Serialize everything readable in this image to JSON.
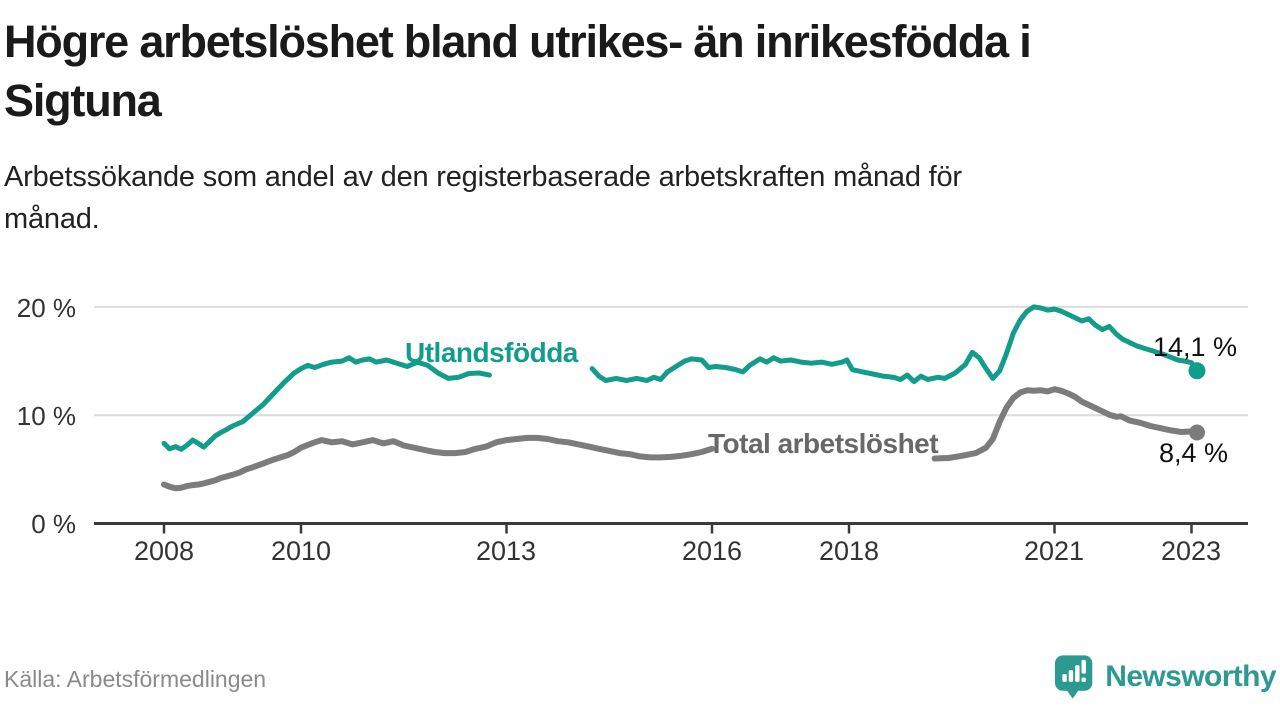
{
  "header": {
    "title": "Högre arbetslöshet bland utrikes- än inrikesfödda i Sigtuna",
    "title_lines": [
      "Högre arbetslöshet bland utrikes- än inrikesfödda i",
      "Sigtuna"
    ],
    "subtitle": "Arbetssökande som andel av den registerbaserade arbetskraften månad för månad.",
    "subtitle_lines": [
      "Arbetssökande som andel av den registerbaserade arbetskraften månad för",
      "månad."
    ]
  },
  "chart_data": {
    "type": "line",
    "title": "Högre arbetslöshet bland utrikes- än inrikesfödda i Sigtuna",
    "xlabel": "",
    "ylabel": "",
    "y_unit": "%",
    "x_unit": "year (monthly observations)",
    "xlim": [
      2007.0,
      2023.85
    ],
    "ylim": [
      0,
      20
    ],
    "grid": "horizontal",
    "legend_position": "inline-labels-on-lines",
    "y_ticks": [
      {
        "value": 20,
        "label": "20 %"
      },
      {
        "value": 10,
        "label": "10 %"
      },
      {
        "value": 0,
        "label": "0 %"
      }
    ],
    "x_ticks": [
      {
        "value": 2008,
        "label": "2008"
      },
      {
        "value": 2010,
        "label": "2010"
      },
      {
        "value": 2013,
        "label": "2013"
      },
      {
        "value": 2016,
        "label": "2016"
      },
      {
        "value": 2018,
        "label": "2018"
      },
      {
        "value": 2021,
        "label": "2021"
      },
      {
        "value": 2023,
        "label": "2023"
      }
    ],
    "colors": {
      "grid": "#dcdcdc",
      "axis": "#3a3a3a",
      "tick_text": "#333333"
    },
    "series": [
      {
        "name": "Utlandsfödda",
        "color": "#119c8b",
        "end_label": "14,1 %",
        "end_value": 14.1,
        "hidden_behind_label": [
          2012.78,
          2014.2
        ],
        "points": [
          [
            2008.0,
            7.4
          ],
          [
            2008.08,
            6.9
          ],
          [
            2008.17,
            7.1
          ],
          [
            2008.25,
            6.85
          ],
          [
            2008.33,
            7.2
          ],
          [
            2008.42,
            7.7
          ],
          [
            2008.5,
            7.4
          ],
          [
            2008.58,
            7.05
          ],
          [
            2008.67,
            7.6
          ],
          [
            2008.75,
            8.1
          ],
          [
            2008.83,
            8.4
          ],
          [
            2008.92,
            8.7
          ],
          [
            2009.0,
            9.0
          ],
          [
            2009.15,
            9.4
          ],
          [
            2009.3,
            10.2
          ],
          [
            2009.45,
            11.0
          ],
          [
            2009.6,
            12.0
          ],
          [
            2009.75,
            13.0
          ],
          [
            2009.9,
            13.9
          ],
          [
            2010.0,
            14.3
          ],
          [
            2010.1,
            14.6
          ],
          [
            2010.2,
            14.4
          ],
          [
            2010.33,
            14.7
          ],
          [
            2010.45,
            14.9
          ],
          [
            2010.6,
            15.0
          ],
          [
            2010.7,
            15.3
          ],
          [
            2010.8,
            14.9
          ],
          [
            2010.9,
            15.1
          ],
          [
            2011.0,
            15.2
          ],
          [
            2011.1,
            14.9
          ],
          [
            2011.25,
            15.1
          ],
          [
            2011.4,
            14.8
          ],
          [
            2011.55,
            14.5
          ],
          [
            2011.7,
            14.9
          ],
          [
            2011.85,
            14.6
          ],
          [
            2012.0,
            13.9
          ],
          [
            2012.15,
            13.4
          ],
          [
            2012.3,
            13.5
          ],
          [
            2012.45,
            13.85
          ],
          [
            2012.6,
            13.9
          ],
          [
            2012.75,
            13.7
          ],
          [
            2012.9,
            13.8
          ],
          [
            2013.1,
            13.9
          ],
          [
            2013.3,
            13.8
          ],
          [
            2013.5,
            14.0
          ],
          [
            2013.7,
            13.9
          ],
          [
            2013.9,
            13.8
          ],
          [
            2014.1,
            14.0
          ],
          [
            2014.25,
            14.3
          ],
          [
            2014.35,
            13.6
          ],
          [
            2014.45,
            13.2
          ],
          [
            2014.6,
            13.4
          ],
          [
            2014.75,
            13.2
          ],
          [
            2014.9,
            13.4
          ],
          [
            2015.05,
            13.2
          ],
          [
            2015.15,
            13.5
          ],
          [
            2015.25,
            13.3
          ],
          [
            2015.35,
            14.0
          ],
          [
            2015.5,
            14.6
          ],
          [
            2015.6,
            15.0
          ],
          [
            2015.7,
            15.2
          ],
          [
            2015.85,
            15.1
          ],
          [
            2015.95,
            14.4
          ],
          [
            2016.05,
            14.5
          ],
          [
            2016.2,
            14.4
          ],
          [
            2016.35,
            14.2
          ],
          [
            2016.45,
            14.0
          ],
          [
            2016.55,
            14.6
          ],
          [
            2016.7,
            15.2
          ],
          [
            2016.8,
            14.9
          ],
          [
            2016.9,
            15.3
          ],
          [
            2017.0,
            15.0
          ],
          [
            2017.15,
            15.1
          ],
          [
            2017.3,
            14.9
          ],
          [
            2017.45,
            14.8
          ],
          [
            2017.6,
            14.9
          ],
          [
            2017.75,
            14.7
          ],
          [
            2017.9,
            14.9
          ],
          [
            2017.97,
            15.1
          ],
          [
            2018.05,
            14.2
          ],
          [
            2018.2,
            14.0
          ],
          [
            2018.35,
            13.8
          ],
          [
            2018.5,
            13.6
          ],
          [
            2018.65,
            13.5
          ],
          [
            2018.75,
            13.3
          ],
          [
            2018.85,
            13.7
          ],
          [
            2018.95,
            13.1
          ],
          [
            2019.05,
            13.6
          ],
          [
            2019.15,
            13.3
          ],
          [
            2019.3,
            13.5
          ],
          [
            2019.4,
            13.4
          ],
          [
            2019.55,
            13.9
          ],
          [
            2019.7,
            14.7
          ],
          [
            2019.8,
            15.8
          ],
          [
            2019.9,
            15.3
          ],
          [
            2020.0,
            14.3
          ],
          [
            2020.1,
            13.4
          ],
          [
            2020.2,
            14.1
          ],
          [
            2020.3,
            15.7
          ],
          [
            2020.4,
            17.6
          ],
          [
            2020.5,
            18.8
          ],
          [
            2020.6,
            19.6
          ],
          [
            2020.7,
            20.0
          ],
          [
            2020.8,
            19.9
          ],
          [
            2020.9,
            19.7
          ],
          [
            2021.0,
            19.8
          ],
          [
            2021.1,
            19.6
          ],
          [
            2021.2,
            19.3
          ],
          [
            2021.3,
            19.0
          ],
          [
            2021.4,
            18.7
          ],
          [
            2021.5,
            18.9
          ],
          [
            2021.6,
            18.3
          ],
          [
            2021.7,
            17.9
          ],
          [
            2021.8,
            18.2
          ],
          [
            2021.9,
            17.5
          ],
          [
            2022.0,
            17.0
          ],
          [
            2022.1,
            16.7
          ],
          [
            2022.2,
            16.4
          ],
          [
            2022.3,
            16.2
          ],
          [
            2022.45,
            15.9
          ],
          [
            2022.6,
            15.6
          ],
          [
            2022.7,
            15.35
          ],
          [
            2022.8,
            15.1
          ],
          [
            2022.9,
            15.0
          ],
          [
            2023.0,
            14.85
          ],
          [
            2023.08,
            14.1
          ]
        ]
      },
      {
        "name": "Total arbetslöshet",
        "color": "#7c7c7c",
        "end_label": "8,4 %",
        "end_value": 8.4,
        "hidden_behind_label": [
          2016.02,
          2019.2
        ],
        "points": [
          [
            2008.0,
            3.6
          ],
          [
            2008.08,
            3.4
          ],
          [
            2008.17,
            3.25
          ],
          [
            2008.25,
            3.3
          ],
          [
            2008.33,
            3.45
          ],
          [
            2008.42,
            3.55
          ],
          [
            2008.5,
            3.6
          ],
          [
            2008.58,
            3.7
          ],
          [
            2008.67,
            3.85
          ],
          [
            2008.75,
            4.0
          ],
          [
            2008.83,
            4.2
          ],
          [
            2008.92,
            4.35
          ],
          [
            2009.0,
            4.5
          ],
          [
            2009.1,
            4.7
          ],
          [
            2009.2,
            5.0
          ],
          [
            2009.3,
            5.2
          ],
          [
            2009.45,
            5.55
          ],
          [
            2009.6,
            5.9
          ],
          [
            2009.7,
            6.1
          ],
          [
            2009.8,
            6.3
          ],
          [
            2009.9,
            6.6
          ],
          [
            2010.0,
            7.0
          ],
          [
            2010.1,
            7.25
          ],
          [
            2010.2,
            7.5
          ],
          [
            2010.3,
            7.7
          ],
          [
            2010.45,
            7.5
          ],
          [
            2010.6,
            7.6
          ],
          [
            2010.75,
            7.3
          ],
          [
            2010.9,
            7.5
          ],
          [
            2011.05,
            7.7
          ],
          [
            2011.2,
            7.4
          ],
          [
            2011.35,
            7.6
          ],
          [
            2011.5,
            7.2
          ],
          [
            2011.65,
            7.0
          ],
          [
            2011.8,
            6.8
          ],
          [
            2011.95,
            6.6
          ],
          [
            2012.1,
            6.5
          ],
          [
            2012.25,
            6.5
          ],
          [
            2012.4,
            6.6
          ],
          [
            2012.55,
            6.9
          ],
          [
            2012.7,
            7.1
          ],
          [
            2012.85,
            7.5
          ],
          [
            2013.0,
            7.7
          ],
          [
            2013.15,
            7.8
          ],
          [
            2013.3,
            7.9
          ],
          [
            2013.45,
            7.9
          ],
          [
            2013.6,
            7.8
          ],
          [
            2013.75,
            7.6
          ],
          [
            2013.9,
            7.5
          ],
          [
            2014.05,
            7.3
          ],
          [
            2014.2,
            7.1
          ],
          [
            2014.35,
            6.9
          ],
          [
            2014.5,
            6.7
          ],
          [
            2014.65,
            6.5
          ],
          [
            2014.8,
            6.4
          ],
          [
            2014.95,
            6.2
          ],
          [
            2015.1,
            6.1
          ],
          [
            2015.25,
            6.1
          ],
          [
            2015.4,
            6.15
          ],
          [
            2015.55,
            6.25
          ],
          [
            2015.7,
            6.4
          ],
          [
            2015.85,
            6.6
          ],
          [
            2016.0,
            6.9
          ],
          [
            2016.15,
            7.1
          ],
          [
            2016.4,
            7.25
          ],
          [
            2016.7,
            7.4
          ],
          [
            2017.0,
            7.45
          ],
          [
            2017.3,
            7.4
          ],
          [
            2017.6,
            7.3
          ],
          [
            2017.9,
            7.1
          ],
          [
            2018.2,
            6.9
          ],
          [
            2018.5,
            6.7
          ],
          [
            2018.8,
            6.4
          ],
          [
            2019.05,
            6.1
          ],
          [
            2019.25,
            6.0
          ],
          [
            2019.45,
            6.05
          ],
          [
            2019.65,
            6.25
          ],
          [
            2019.85,
            6.5
          ],
          [
            2020.0,
            7.0
          ],
          [
            2020.1,
            7.8
          ],
          [
            2020.2,
            9.4
          ],
          [
            2020.3,
            10.7
          ],
          [
            2020.4,
            11.6
          ],
          [
            2020.5,
            12.1
          ],
          [
            2020.6,
            12.3
          ],
          [
            2020.7,
            12.25
          ],
          [
            2020.8,
            12.3
          ],
          [
            2020.9,
            12.2
          ],
          [
            2021.0,
            12.4
          ],
          [
            2021.1,
            12.25
          ],
          [
            2021.2,
            12.0
          ],
          [
            2021.3,
            11.7
          ],
          [
            2021.4,
            11.25
          ],
          [
            2021.55,
            10.8
          ],
          [
            2021.7,
            10.35
          ],
          [
            2021.8,
            10.05
          ],
          [
            2021.9,
            9.85
          ],
          [
            2021.97,
            9.9
          ],
          [
            2022.1,
            9.5
          ],
          [
            2022.25,
            9.3
          ],
          [
            2022.4,
            9.0
          ],
          [
            2022.55,
            8.8
          ],
          [
            2022.7,
            8.6
          ],
          [
            2022.85,
            8.45
          ],
          [
            2023.0,
            8.5
          ],
          [
            2023.08,
            8.4
          ]
        ]
      }
    ]
  },
  "footer": {
    "source": "Källa: Arbetsförmedlingen",
    "brand": "Newsworthy",
    "brand_color": "#2d9a92",
    "logo_icon": "speech-bubble-with-bar-chart-and-exclamation"
  }
}
